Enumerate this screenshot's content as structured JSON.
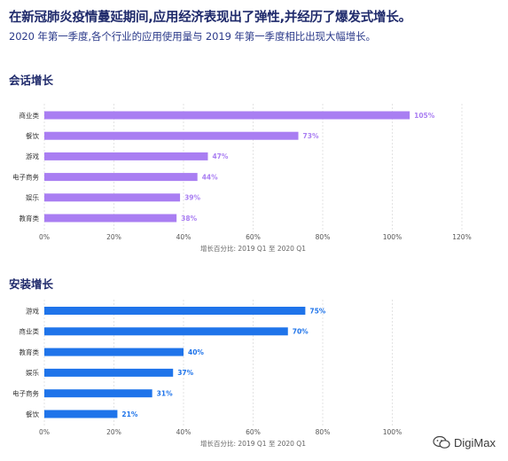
{
  "headline": "在新冠肺炎疫情蔓延期间,应用经济表现出了弹性,并经历了爆发式增长。",
  "subtitle": "2020 年第一季度,各个行业的应用使用量与 2019 年第一季度相比出现大幅增长。",
  "watermark": "DigiMax",
  "chart_data": [
    {
      "type": "bar",
      "orientation": "horizontal",
      "title": "会话增长",
      "categories": [
        "商业类",
        "餐饮",
        "游戏",
        "电子商务",
        "娱乐",
        "教育类"
      ],
      "values": [
        105,
        73,
        47,
        44,
        39,
        38
      ],
      "value_labels": [
        "105%",
        "73%",
        "47%",
        "44%",
        "39%",
        "38%"
      ],
      "xticks": [
        "0%",
        "20%",
        "40%",
        "60%",
        "80%",
        "100%",
        "120%"
      ],
      "xlim": [
        0,
        120
      ],
      "xlabel": "增长百分比: 2019 Q1 至 2020 Q1",
      "grid": true,
      "color": "#a97ef2"
    },
    {
      "type": "bar",
      "orientation": "horizontal",
      "title": "安装增长",
      "categories": [
        "游戏",
        "商业类",
        "教育类",
        "娱乐",
        "电子商务",
        "餐饮"
      ],
      "values": [
        75,
        70,
        40,
        37,
        31,
        21
      ],
      "value_labels": [
        "75%",
        "70%",
        "40%",
        "37%",
        "31%",
        "21%"
      ],
      "xticks": [
        "0%",
        "20%",
        "40%",
        "60%",
        "80%",
        "100%"
      ],
      "xlim": [
        0,
        100
      ],
      "xlabel": "增长百分比: 2019 Q1 至 2020 Q1",
      "grid": true,
      "color": "#1f74ea"
    }
  ]
}
